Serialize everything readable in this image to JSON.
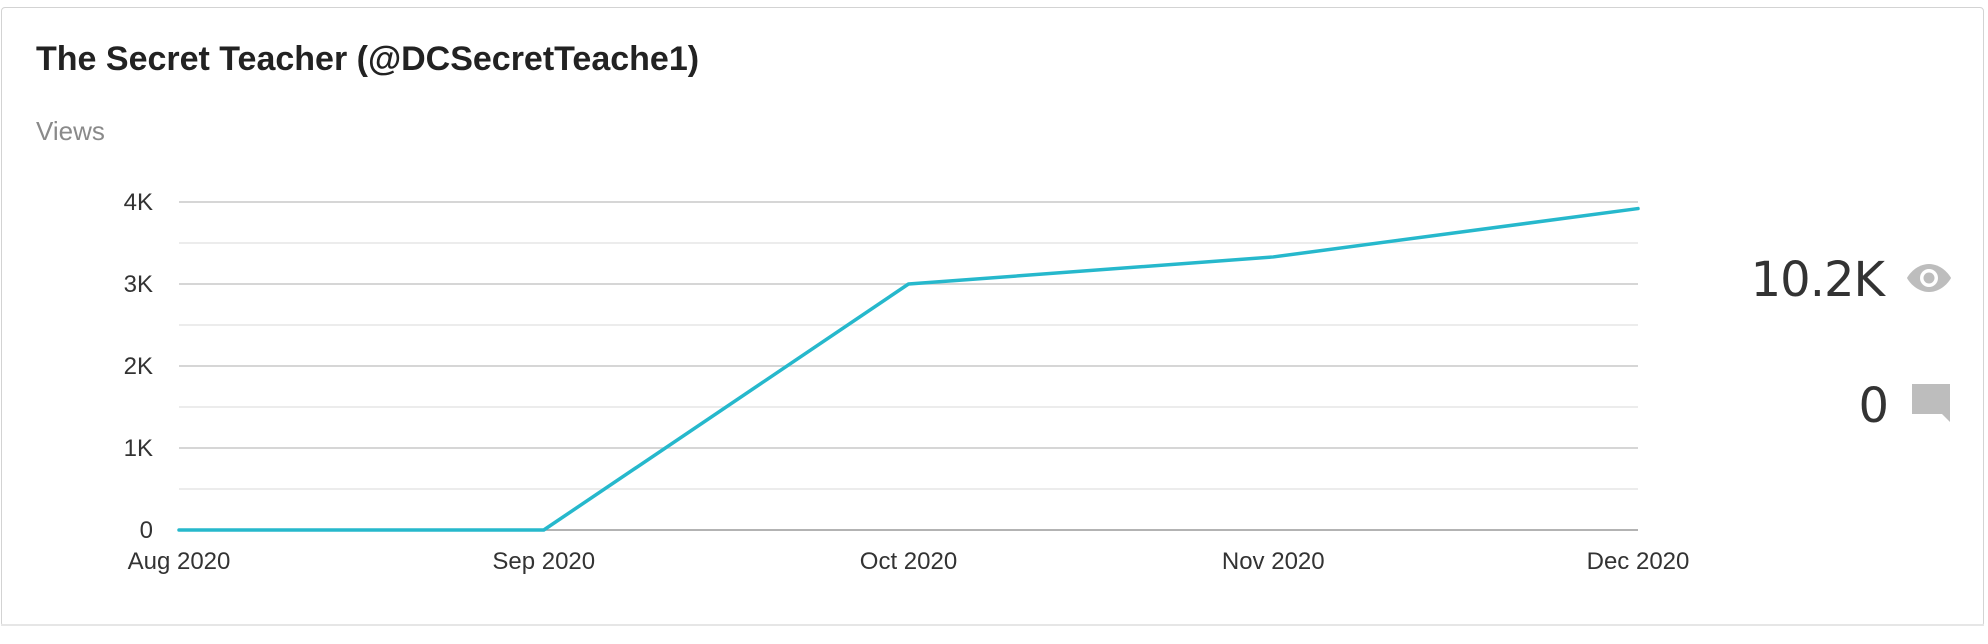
{
  "card": {
    "title": "The Secret Teacher (@DCSecretTeache1)",
    "subtitle": "Views"
  },
  "stats": {
    "views_value": "10.2K",
    "views_icon": "eye-icon",
    "comments_value": "0",
    "comments_icon": "comment-icon",
    "icon_color": "#bdbdbd"
  },
  "chart_data": {
    "type": "line",
    "title": "",
    "xlabel": "",
    "ylabel": "Views",
    "categories": [
      "Aug 2020",
      "Sep 2020",
      "Oct 2020",
      "Nov 2020",
      "Dec 2020"
    ],
    "series": [
      {
        "values": [
          0,
          0,
          3000,
          3330,
          3920
        ],
        "color": "#26b8cc"
      }
    ],
    "ylim": [
      0,
      4000
    ],
    "yticks": [
      0,
      1000,
      2000,
      3000,
      4000
    ],
    "ytick_labels": [
      "0",
      "1K",
      "2K",
      "3K",
      "4K"
    ],
    "grid": true,
    "legend": "none"
  }
}
